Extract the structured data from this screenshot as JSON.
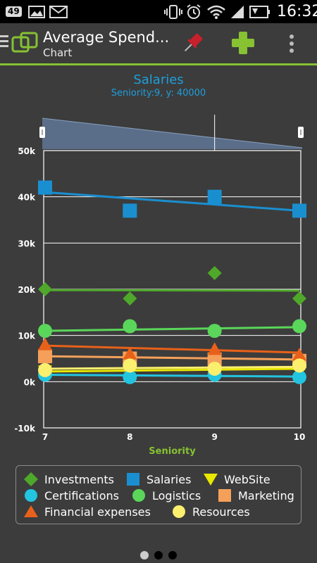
{
  "status": {
    "notification_badge": "49",
    "time": "16:32"
  },
  "app": {
    "title": "Average Spend...",
    "subtitle": "Chart"
  },
  "chart_header": {
    "title": "Salaries",
    "selection": "Seniority:9, y: 40000"
  },
  "chart_data": {
    "type": "scatter",
    "xlabel": "Seniority",
    "ylabel": "",
    "x": [
      7,
      8,
      9,
      10
    ],
    "xlim": [
      7,
      10
    ],
    "ylim": [
      -10000,
      50000
    ],
    "y_ticks": [
      "-10k",
      "0k",
      "10k",
      "20k",
      "30k",
      "40k",
      "50k"
    ],
    "x_ticks": [
      "7",
      "8",
      "9",
      "10"
    ],
    "grid": true,
    "trendlines": true,
    "series": [
      {
        "name": "Investments",
        "color": "#4fa82a",
        "marker": "diamond",
        "values": [
          20000,
          18000,
          23500,
          18000
        ],
        "trend": [
          19800,
          19700
        ]
      },
      {
        "name": "Salaries",
        "color": "#1a8fd0",
        "marker": "square",
        "values": [
          42000,
          37000,
          40000,
          37000
        ],
        "trend": [
          41000,
          37000
        ]
      },
      {
        "name": "WebSite",
        "color": "#e8e800",
        "marker": "triangle-down",
        "values": [
          2300,
          2500,
          2700,
          2600
        ],
        "trend": [
          2200,
          2800
        ]
      },
      {
        "name": "Certifications",
        "color": "#22c4e0",
        "marker": "circle",
        "values": [
          1500,
          1000,
          1500,
          1000
        ],
        "trend": [
          1500,
          1100
        ]
      },
      {
        "name": "Logistics",
        "color": "#5ad65a",
        "marker": "circle",
        "values": [
          11000,
          12000,
          11000,
          12000
        ],
        "trend": [
          11000,
          11800
        ]
      },
      {
        "name": "Marketing",
        "color": "#f5a05a",
        "marker": "square",
        "values": [
          5500,
          5000,
          4800,
          4500
        ],
        "trend": [
          5500,
          4800
        ]
      },
      {
        "name": "Financial expenses",
        "color": "#e8611a",
        "marker": "triangle-up",
        "values": [
          8000,
          6000,
          7000,
          5800
        ],
        "trend": [
          7800,
          6300
        ]
      },
      {
        "name": "Resources",
        "color": "#fbef6e",
        "marker": "circle",
        "values": [
          2500,
          3500,
          2800,
          3500
        ],
        "trend": [
          2800,
          3200
        ]
      }
    ],
    "selected_point": {
      "series": "Salaries",
      "x": 9,
      "y": 40000
    }
  },
  "pager": {
    "pages": 3,
    "active": 0
  }
}
